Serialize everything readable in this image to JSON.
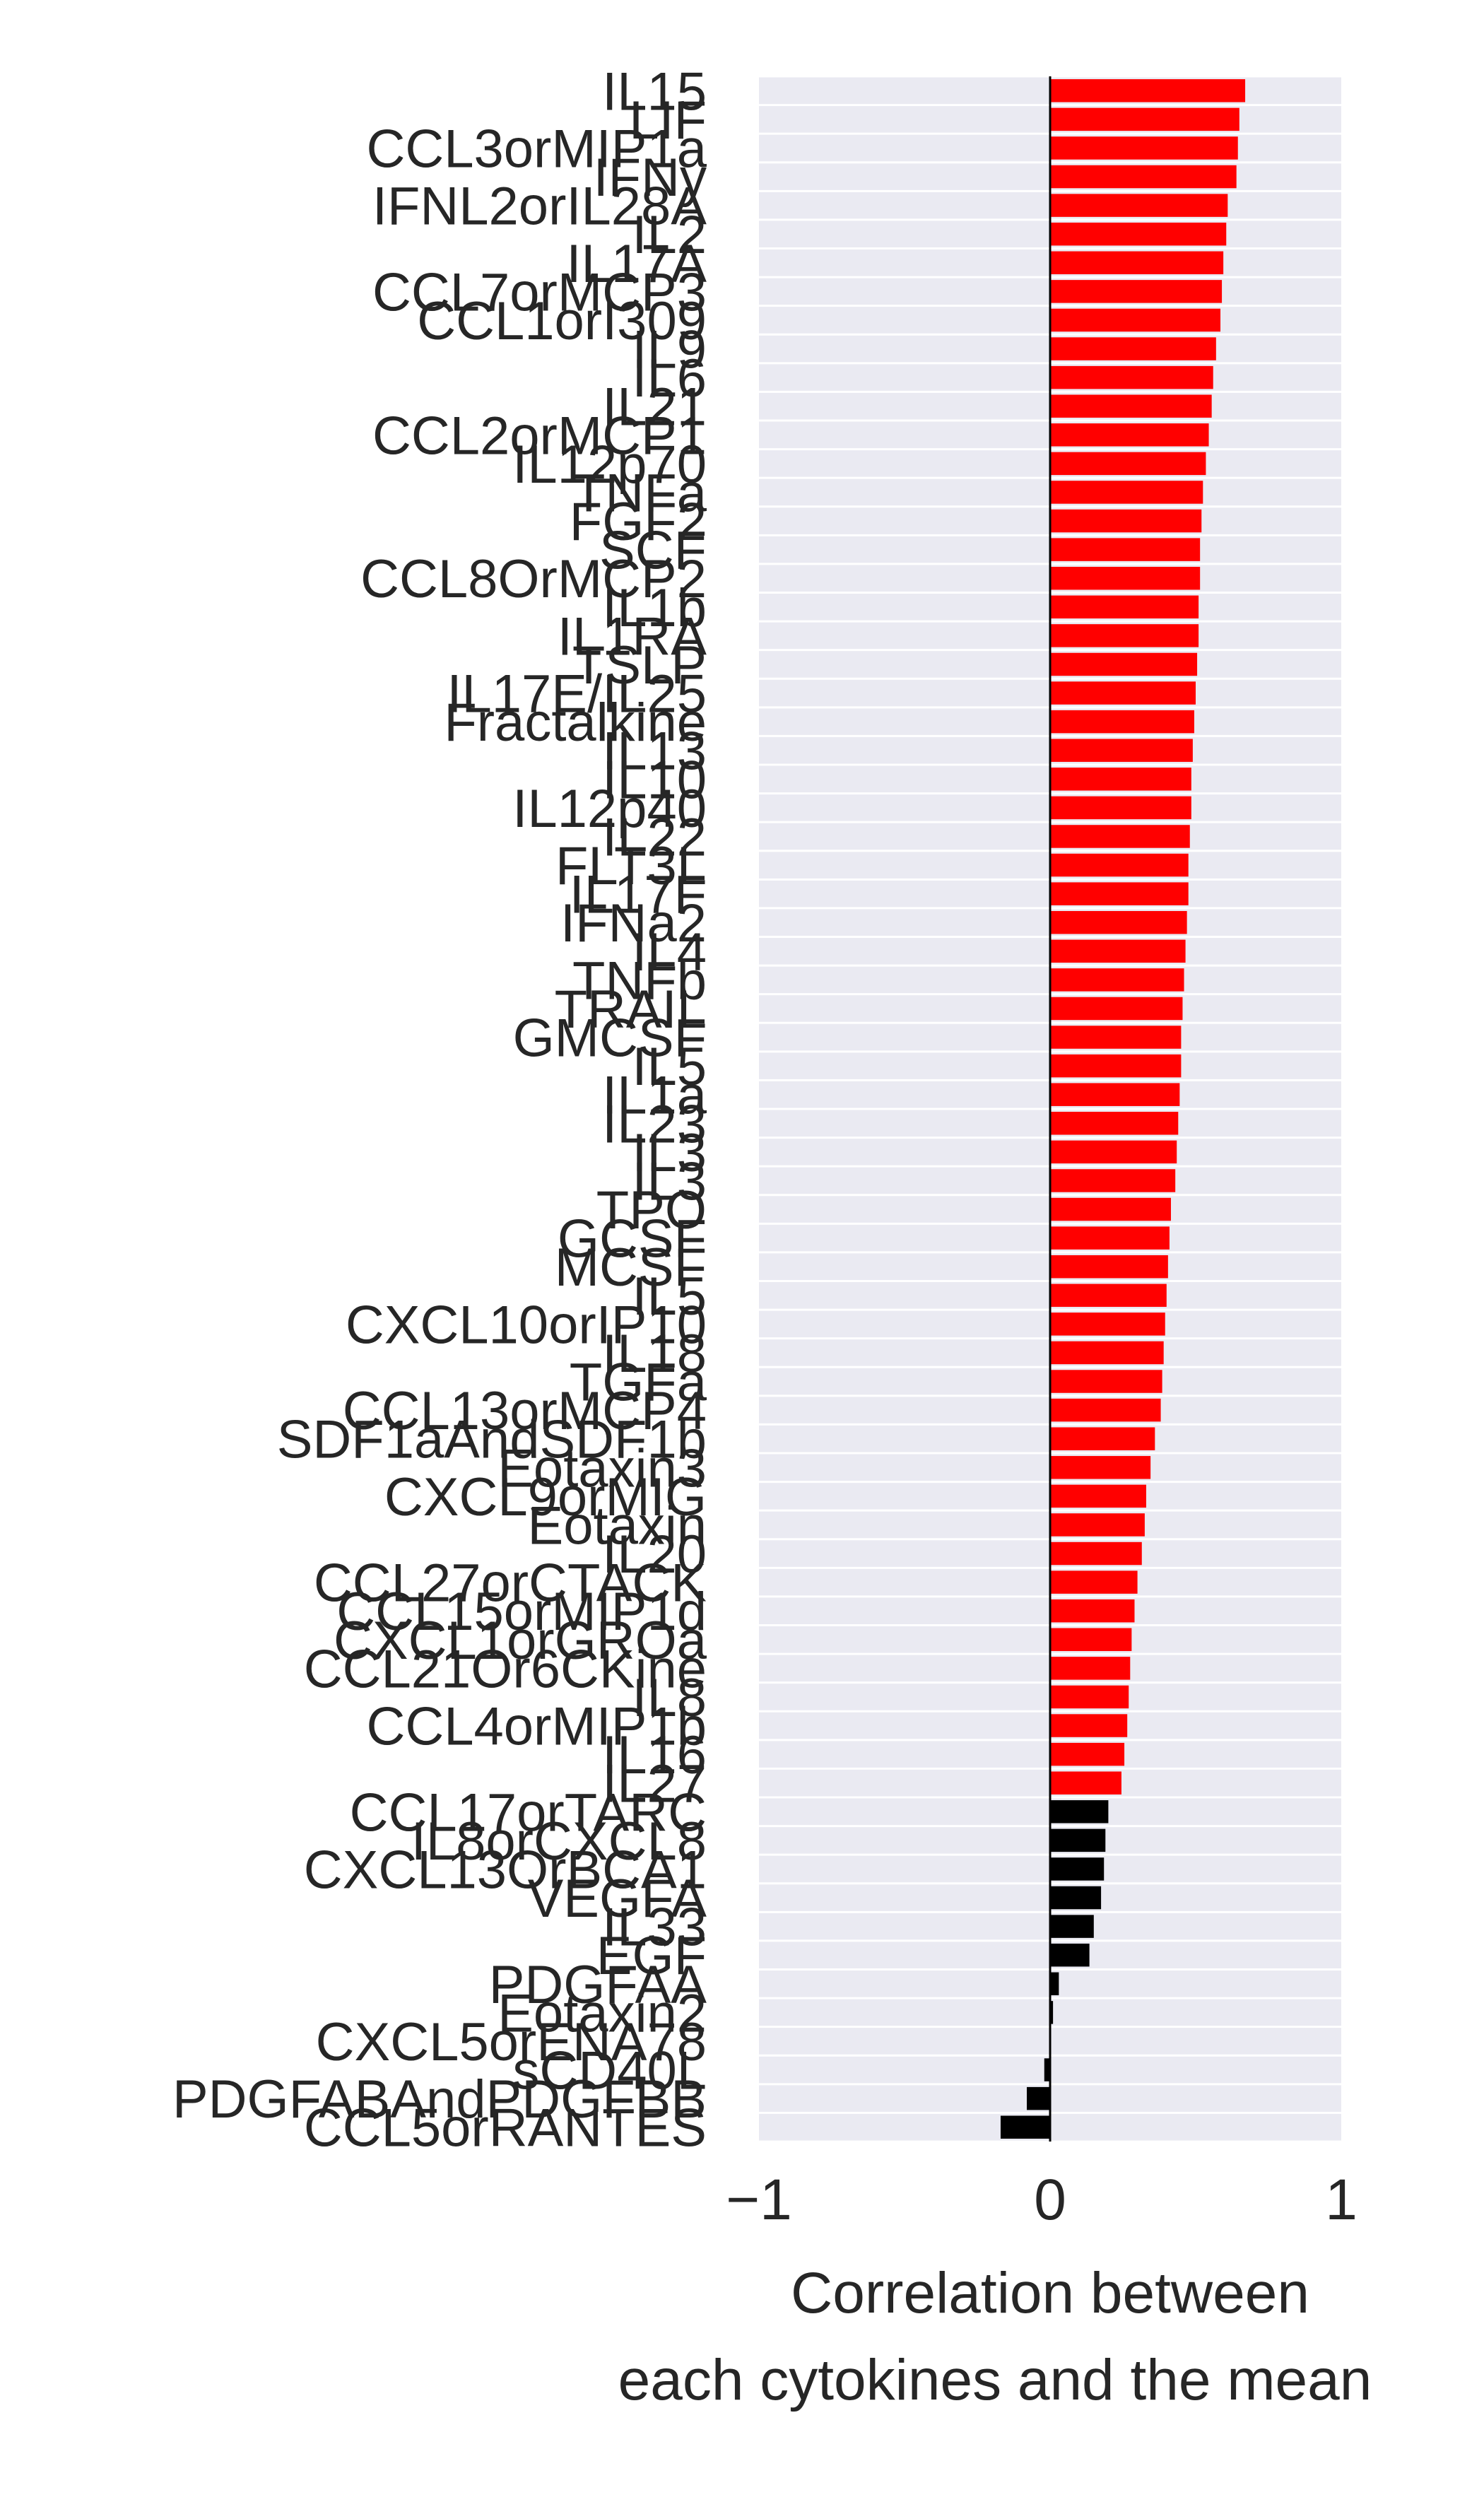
{
  "chart_data": {
    "type": "bar",
    "orientation": "horizontal",
    "title": "",
    "xlabel": [
      "Correlation between",
      "each cytokines and the mean"
    ],
    "ylabel": "",
    "xlim": [
      -1,
      1
    ],
    "xticks": [
      {
        "value": -1,
        "label": "−1"
      },
      {
        "value": 0,
        "label": "0"
      },
      {
        "value": 1,
        "label": "1"
      }
    ],
    "grid": "on (horizontal lines between bars)",
    "background_color": "#eaeaf2",
    "threshold": 0.22,
    "colors": {
      "above_threshold": "#ff0000",
      "below_threshold": "#000000"
    },
    "categories": [
      "IL15",
      "LIF",
      "CCL3orMIP1a",
      "IFNy",
      "IFNL2orIL28A",
      "IL2",
      "IL17A",
      "CCL7orMCP3",
      "CCL1orI309",
      "IL9",
      "IL6",
      "IL21",
      "CCL2orMCP1",
      "IL12p70",
      "TNFa",
      "FGF2",
      "SCF",
      "CCL8OrMCP2",
      "IL1b",
      "IL1RA",
      "TSLP",
      "IL17E/IL25",
      "Fractalkine",
      "IL13",
      "IL10",
      "IL12p40",
      "IL22",
      "FLT3L",
      "IL17F",
      "IFNa2",
      "IL4",
      "TNFb",
      "TRAIL",
      "GMCSF",
      "IL5",
      "IL1a",
      "IL23",
      "IL3",
      "IL3",
      "TPO",
      "GCSF",
      "MCSF",
      "IL5",
      "CXCL10orIP10",
      "IL18",
      "TGFa",
      "CCL13orMCP4",
      "SDF1aAndSDF1b",
      "Eotaxin3",
      "CXCL9orMIG",
      "Eotaxin",
      "IL20",
      "CCL27orCTACK",
      "CCL15orMIP1d",
      "CXCL1orGROa",
      "CCL21Or6CKine",
      "IL8",
      "CCL4orMIP1b",
      "IL16",
      "IL27",
      "CCL17orTARC",
      "IL8orCXCL8",
      "CXCL13OrBCA1",
      "VEGFA",
      "IL33",
      "EGF",
      "PDGFAA",
      "Eotaxin2",
      "CXCL5orENA78",
      "sCD40L",
      "PDGFABAndPDGFBB",
      "CCL5orRANTES"
    ],
    "values": [
      0.67,
      0.65,
      0.645,
      0.64,
      0.61,
      0.605,
      0.595,
      0.59,
      0.585,
      0.57,
      0.56,
      0.555,
      0.545,
      0.535,
      0.525,
      0.52,
      0.515,
      0.515,
      0.51,
      0.51,
      0.505,
      0.5,
      0.495,
      0.49,
      0.485,
      0.485,
      0.48,
      0.475,
      0.475,
      0.47,
      0.465,
      0.46,
      0.455,
      0.45,
      0.45,
      0.445,
      0.44,
      0.435,
      0.43,
      0.415,
      0.41,
      0.405,
      0.4,
      0.395,
      0.39,
      0.385,
      0.38,
      0.36,
      0.345,
      0.33,
      0.325,
      0.315,
      0.3,
      0.29,
      0.28,
      0.275,
      0.27,
      0.265,
      0.255,
      0.245,
      0.2,
      0.19,
      0.185,
      0.175,
      0.15,
      0.135,
      0.03,
      0.01,
      0.0,
      -0.02,
      -0.08,
      -0.17
    ]
  }
}
